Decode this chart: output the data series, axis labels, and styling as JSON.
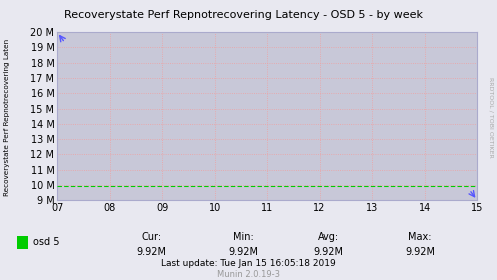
{
  "title": "Recoverystate Perf Repnotrecovering Latency - OSD 5 - by week",
  "ylabel": "Recoverystate Perf Repnotrecovering Laten",
  "bg_color": "#e8e8f0",
  "plot_bg_color": "#c8c8d8",
  "line_color": "#00cc00",
  "x_ticks": [
    7,
    8,
    9,
    10,
    11,
    12,
    13,
    14,
    15
  ],
  "x_tick_labels": [
    "07",
    "08",
    "09",
    "10",
    "11",
    "12",
    "13",
    "14",
    "15"
  ],
  "x_min": 7,
  "x_max": 15,
  "y_min": 9000000,
  "y_max": 20000000,
  "y_ticks": [
    9000000,
    10000000,
    11000000,
    12000000,
    13000000,
    14000000,
    15000000,
    16000000,
    17000000,
    18000000,
    19000000,
    20000000
  ],
  "y_tick_labels": [
    "9 M",
    "10 M",
    "11 M",
    "12 M",
    "13 M",
    "14 M",
    "15 M",
    "16 M",
    "17 M",
    "18 M",
    "19 M",
    "20 M"
  ],
  "data_value": 9920000,
  "cur": "9.92M",
  "min_val": "9.92M",
  "avg": "9.92M",
  "max_val": "9.92M",
  "last_update": "Last update: Tue Jan 15 16:05:18 2019",
  "munin_version": "Munin 2.0.19-3",
  "legend_label": "osd 5",
  "right_label": "RRDTOOL / TOBI OETIKER",
  "grid_color": "#f0a0a0",
  "border_color": "#aaaacc",
  "title_color": "#000000",
  "tick_color": "#000000",
  "stats_label_color": "#000000",
  "munin_color": "#999999"
}
